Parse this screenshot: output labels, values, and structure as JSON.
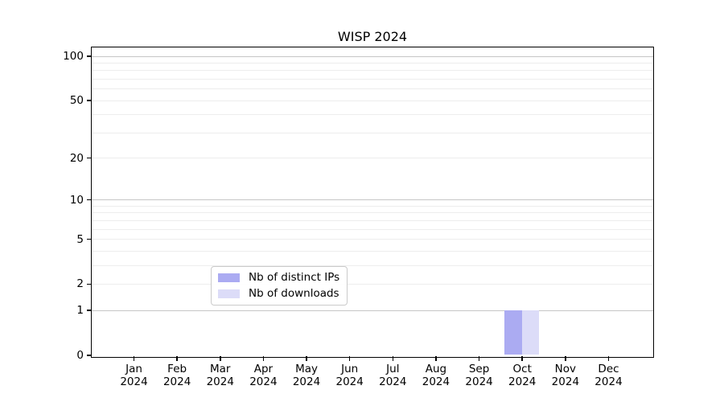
{
  "chart_data": {
    "type": "bar",
    "title": "WISP 2024",
    "categories": [
      "Jan 2024",
      "Feb 2024",
      "Mar 2024",
      "Apr 2024",
      "May 2024",
      "Jun 2024",
      "Jul 2024",
      "Aug 2024",
      "Sep 2024",
      "Oct 2024",
      "Nov 2024",
      "Dec 2024"
    ],
    "series": [
      {
        "name": "Nb of distinct IPs",
        "color": "#ababf2",
        "values": [
          0,
          0,
          0,
          0,
          0,
          0,
          0,
          0,
          0,
          1,
          0,
          0
        ]
      },
      {
        "name": "Nb of downloads",
        "color": "#dcdcf8",
        "values": [
          0,
          0,
          0,
          0,
          0,
          0,
          0,
          0,
          0,
          1,
          0,
          0
        ]
      }
    ],
    "xlabel": "",
    "ylabel": "",
    "yscale": "symlog",
    "yticks": [
      0,
      1,
      2,
      5,
      10,
      20,
      50,
      100
    ],
    "ylim": [
      0,
      115
    ],
    "grid": "horizontal",
    "legend_position": "lower-center-inside",
    "colors": {
      "axis": "#000000",
      "major_grid": "#c6c6c6",
      "minor_grid": "#ededed",
      "background": "#ffffff",
      "text": "#000000"
    }
  }
}
